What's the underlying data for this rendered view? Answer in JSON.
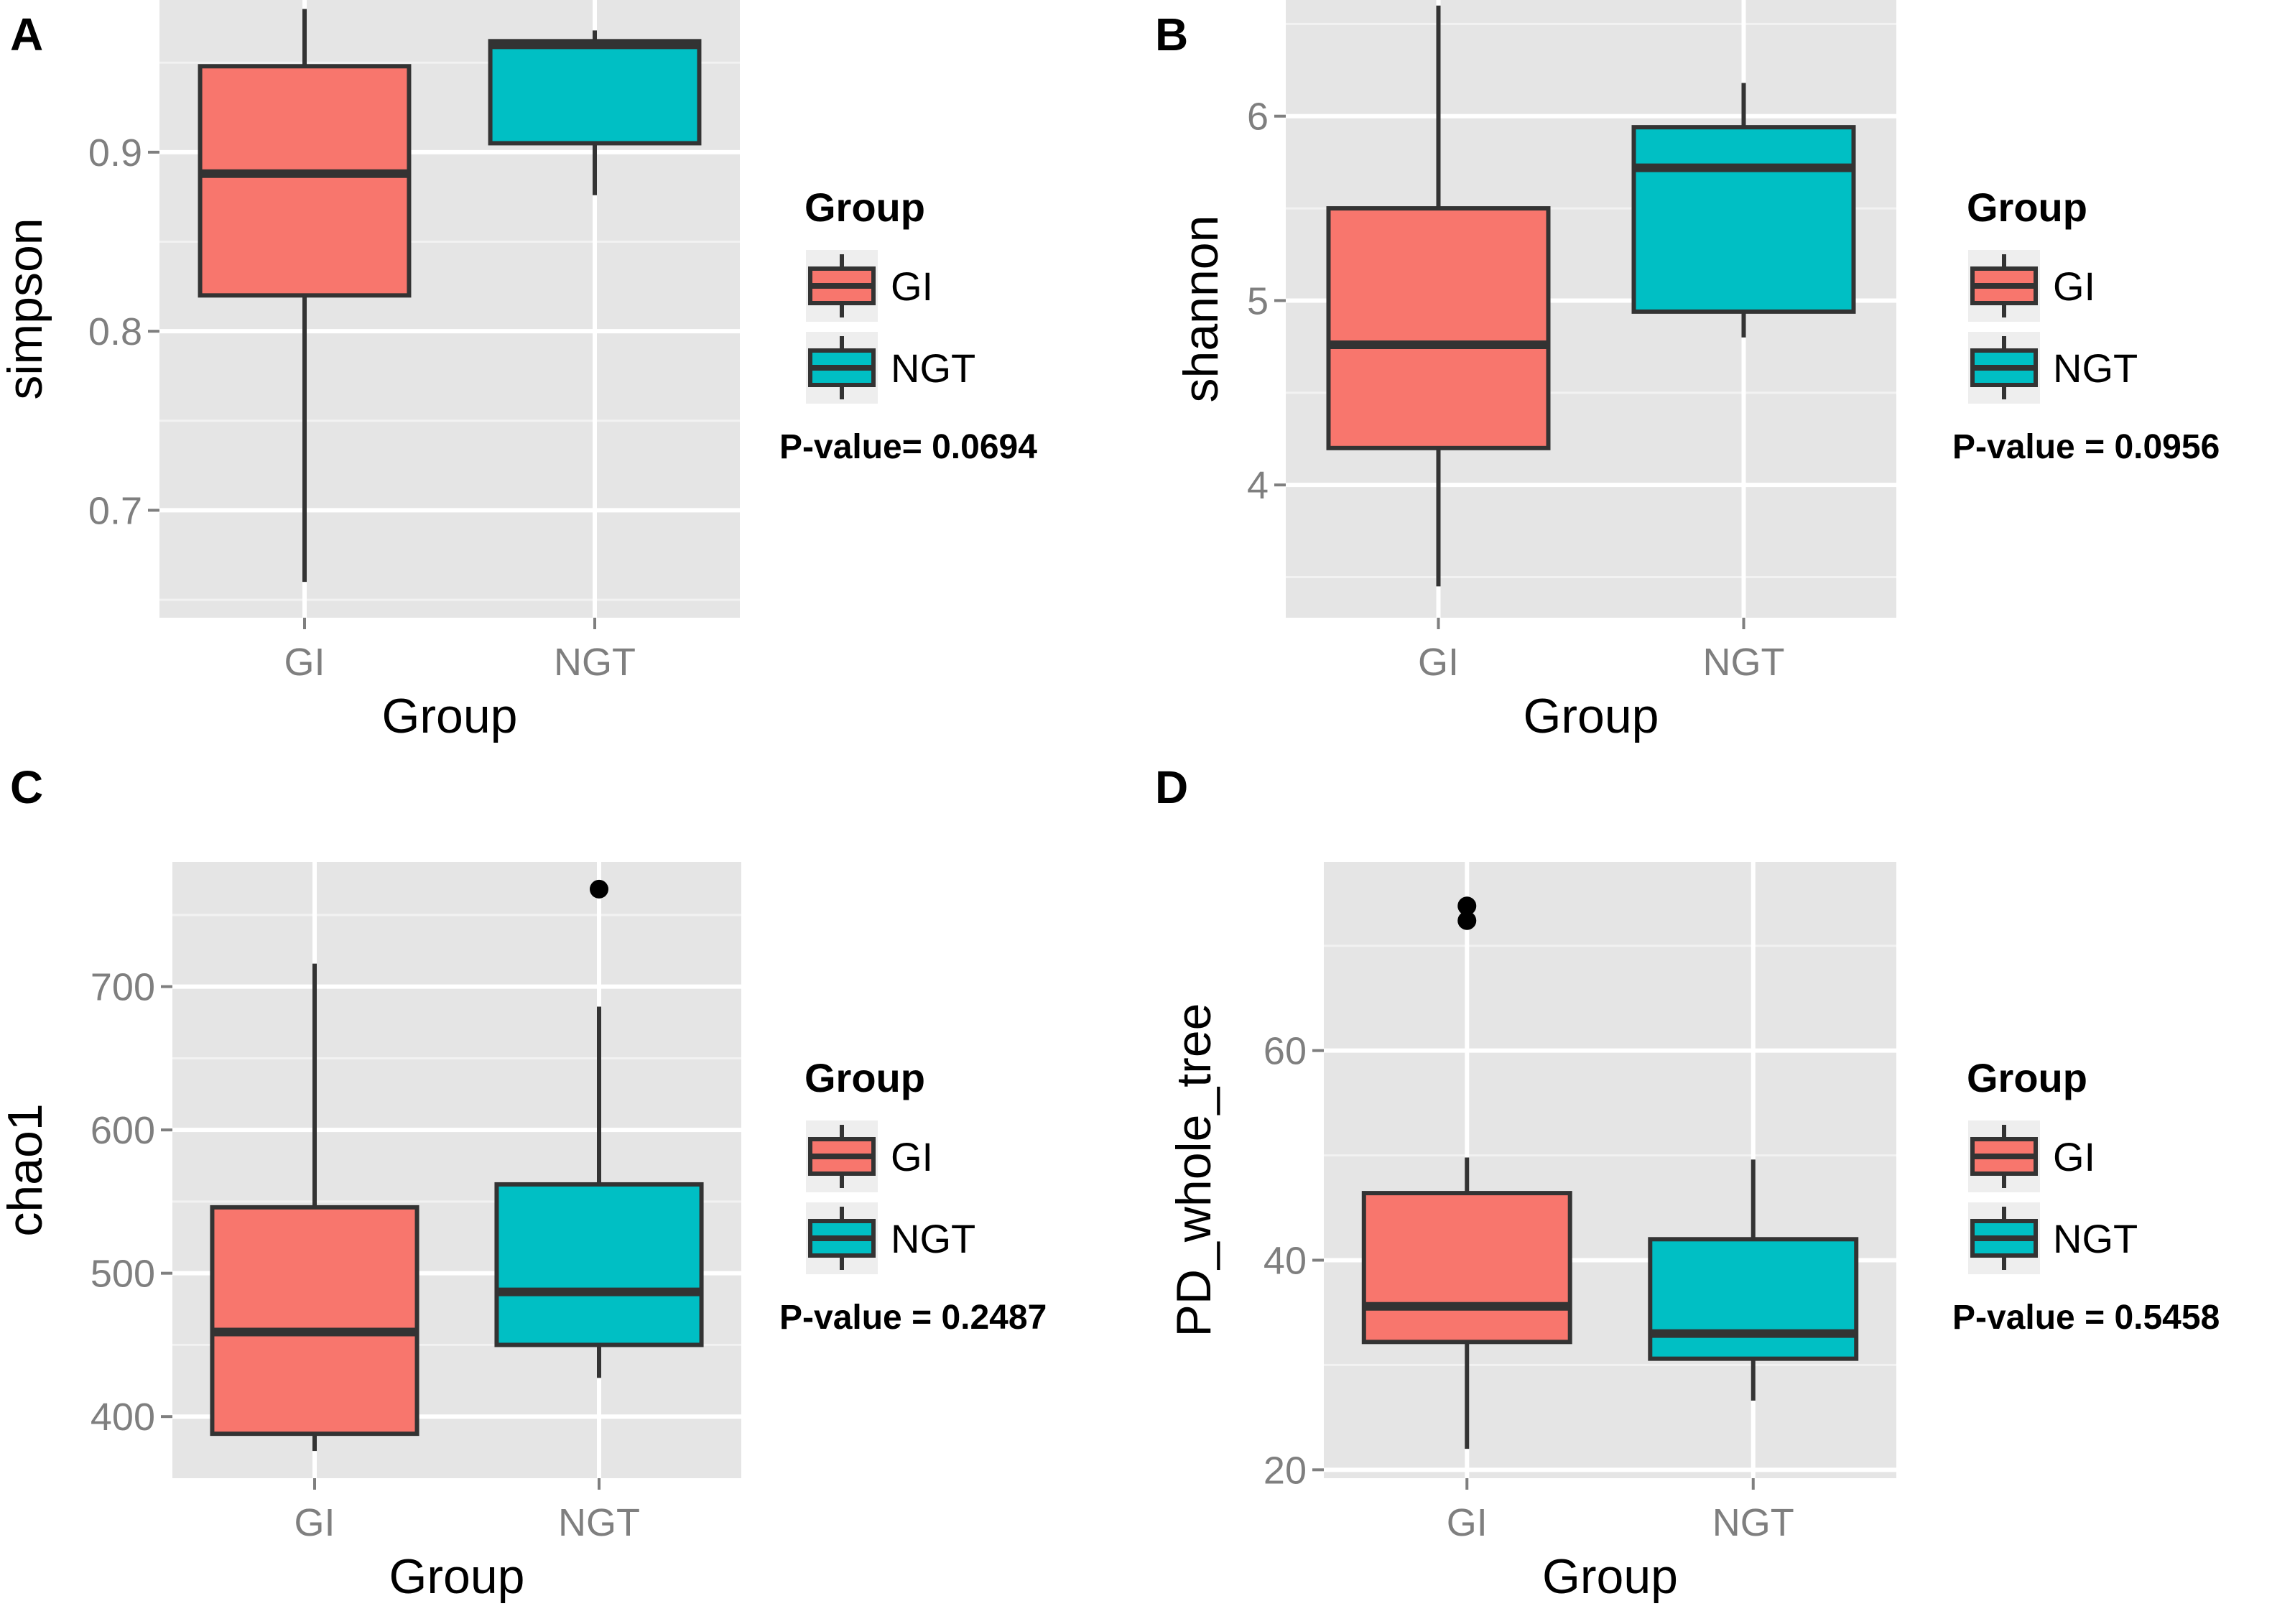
{
  "colors": {
    "GI": "#f8766d",
    "NGT": "#00bfc4",
    "panel_bg": "#e5e5e5",
    "grid": "#ffffff",
    "line": "#333333"
  },
  "chart_data": [
    {
      "panel": "A",
      "type": "box",
      "xlabel": "Group",
      "ylabel": "simpson",
      "categories": [
        "GI",
        "NGT"
      ],
      "ylim": [
        0.64,
        0.985
      ],
      "yticks": [
        0.7,
        0.8,
        0.9
      ],
      "ytick_labels": [
        "0.7",
        "0.8",
        "0.9"
      ],
      "boxes": [
        {
          "group": "GI",
          "min": 0.66,
          "q1": 0.82,
          "median": 0.888,
          "q3": 0.948,
          "max": 0.98,
          "outliers": []
        },
        {
          "group": "NGT",
          "min": 0.876,
          "q1": 0.905,
          "median": 0.96,
          "q3": 0.962,
          "max": 0.968,
          "outliers": []
        }
      ],
      "legend": {
        "title": "Group",
        "items": [
          "GI",
          "NGT"
        ]
      },
      "pvalue": "P-value= 0.0694"
    },
    {
      "panel": "B",
      "type": "box",
      "xlabel": "Group",
      "ylabel": "shannon",
      "categories": [
        "GI",
        "NGT"
      ],
      "ylim": [
        3.28,
        6.63
      ],
      "yticks": [
        4,
        5,
        6
      ],
      "ytick_labels": [
        "4",
        "5",
        "6"
      ],
      "boxes": [
        {
          "group": "GI",
          "min": 3.45,
          "q1": 4.2,
          "median": 4.76,
          "q3": 5.5,
          "max": 6.6,
          "outliers": []
        },
        {
          "group": "NGT",
          "min": 4.8,
          "q1": 4.94,
          "median": 5.72,
          "q3": 5.94,
          "max": 6.18,
          "outliers": []
        }
      ],
      "legend": {
        "title": "Group",
        "items": [
          "GI",
          "NGT"
        ]
      },
      "pvalue": "P-value = 0.0956"
    },
    {
      "panel": "C",
      "type": "box",
      "xlabel": "Group",
      "ylabel": "chao1",
      "categories": [
        "GI",
        "NGT"
      ],
      "ylim": [
        357,
        787
      ],
      "yticks": [
        400,
        500,
        600,
        700
      ],
      "ytick_labels": [
        "400",
        "500",
        "600",
        "700"
      ],
      "boxes": [
        {
          "group": "GI",
          "min": 376,
          "q1": 388,
          "median": 459,
          "q3": 546,
          "max": 716,
          "outliers": []
        },
        {
          "group": "NGT",
          "min": 427,
          "q1": 450,
          "median": 487,
          "q3": 562,
          "max": 686,
          "outliers": [
            768
          ]
        }
      ],
      "legend": {
        "title": "Group",
        "items": [
          "GI",
          "NGT"
        ]
      },
      "pvalue": "P-value = 0.2487"
    },
    {
      "panel": "D",
      "type": "box",
      "xlabel": "Group",
      "ylabel": "PD_whole_tree",
      "categories": [
        "GI",
        "NGT"
      ],
      "ylim": [
        19.2,
        78
      ],
      "yticks": [
        20,
        40,
        60
      ],
      "ytick_labels": [
        "20",
        "40",
        "60"
      ],
      "boxes": [
        {
          "group": "GI",
          "min": 22,
          "q1": 32.2,
          "median": 35.6,
          "q3": 46.4,
          "max": 49.8,
          "outliers": [
            72.4,
            73.8
          ]
        },
        {
          "group": "NGT",
          "min": 26.6,
          "q1": 30.6,
          "median": 33,
          "q3": 42,
          "max": 49.6,
          "outliers": []
        }
      ],
      "legend": {
        "title": "Group",
        "items": [
          "GI",
          "NGT"
        ]
      },
      "pvalue": "P-value = 0.5458"
    }
  ]
}
